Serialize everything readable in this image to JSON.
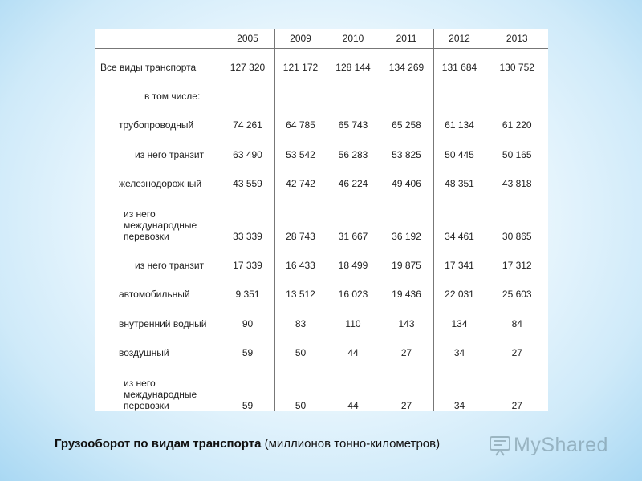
{
  "table": {
    "years": [
      "2005",
      "2009",
      "2010",
      "2011",
      "2012",
      "2013"
    ],
    "rows": [
      {
        "label": "Все виды транспорта",
        "values": [
          "127 320",
          "121 172",
          "128 144",
          "134 269",
          "131 684",
          "130 752"
        ]
      },
      {
        "label": "в том числе:",
        "values": []
      },
      {
        "label": "трубопроводный",
        "values": [
          "74 261",
          "64 785",
          "65 743",
          "65 258",
          "61 134",
          "61 220"
        ]
      },
      {
        "label": "из него транзит",
        "values": [
          "63 490",
          "53 542",
          "56 283",
          "53 825",
          "50 445",
          "50 165"
        ]
      },
      {
        "label": "железнодорожный",
        "values": [
          "43 559",
          "42 742",
          "46 224",
          "49 406",
          "48 351",
          "43 818"
        ]
      },
      {
        "label_lines": [
          "из него",
          "международные",
          "перевозки"
        ],
        "values": [
          "33 339",
          "28 743",
          "31 667",
          "36 192",
          "34 461",
          "30 865"
        ]
      },
      {
        "label": "из него транзит",
        "values": [
          "17 339",
          "16 433",
          "18 499",
          "19 875",
          "17 341",
          "17 312"
        ]
      },
      {
        "label": "автомобильный",
        "values": [
          "9 351",
          "13 512",
          "16 023",
          "19 436",
          "22 031",
          "25 603"
        ]
      },
      {
        "label": "внутренний водный",
        "values": [
          "90",
          "83",
          "110",
          "143",
          "134",
          "84"
        ]
      },
      {
        "label": "воздушный",
        "values": [
          "59",
          "50",
          "44",
          "27",
          "34",
          "27"
        ]
      },
      {
        "label_lines": [
          "из него",
          "международные",
          "перевозки"
        ],
        "values": [
          "59",
          "50",
          "44",
          "27",
          "34",
          "27"
        ]
      }
    ]
  },
  "caption": {
    "bold": "Грузооборот по видам транспорта",
    "normal": " (миллионов тонно-километров)"
  },
  "watermark": {
    "text": "MyShared",
    "icon": "slideshow-icon"
  }
}
